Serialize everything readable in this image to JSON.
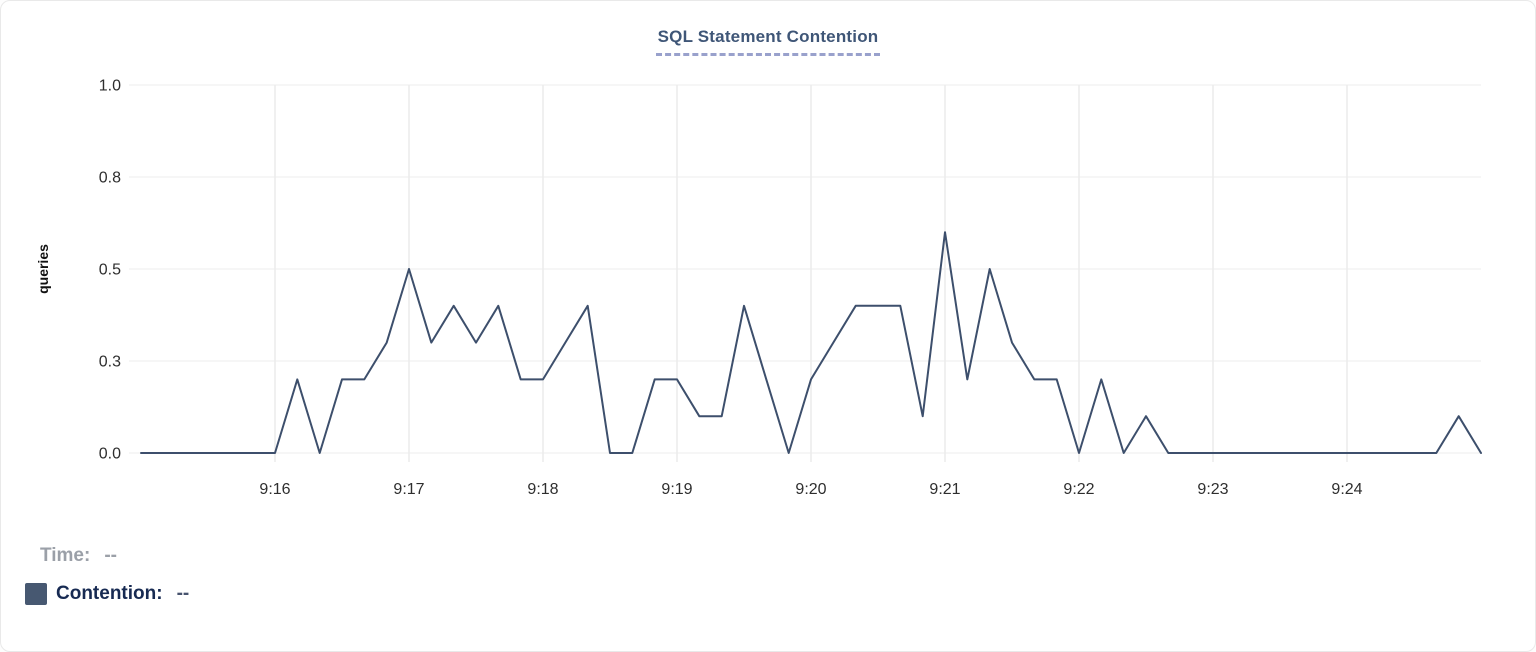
{
  "title": {
    "text": "SQL Statement Contention"
  },
  "colors": {
    "title": "#3f5677",
    "title_underline": "#99a1cc",
    "line": "#3d4f6c",
    "grid": "#ececec",
    "tick_text": "#2e2e2e",
    "legend_time_text": "#9ba0a8",
    "legend_series_text": "#172a52",
    "legend_series_value": "#47536e",
    "swatch": "#475871"
  },
  "tooltip": {
    "time_label": "Time:",
    "time_value": "--",
    "series_label": "Contention:",
    "series_value": "--"
  },
  "chart_data": {
    "type": "line",
    "title": "SQL Statement Contention",
    "xlabel": "",
    "ylabel": "queries",
    "ylim": [
      0,
      1
    ],
    "grid": true,
    "legend_position": "bottom-left",
    "y_ticks": [
      {
        "value": 1.0,
        "label": "1.0"
      },
      {
        "value": 0.75,
        "label": "0.8"
      },
      {
        "value": 0.5,
        "label": "0.5"
      },
      {
        "value": 0.25,
        "label": "0.3"
      },
      {
        "value": 0.0,
        "label": "0.0"
      }
    ],
    "x_domain": {
      "start": "9:15:00",
      "end": "9:25:00",
      "total_seconds": 600
    },
    "x_ticks": [
      {
        "offset_seconds": 60,
        "label": "9:16"
      },
      {
        "offset_seconds": 120,
        "label": "9:17"
      },
      {
        "offset_seconds": 180,
        "label": "9:18"
      },
      {
        "offset_seconds": 240,
        "label": "9:19"
      },
      {
        "offset_seconds": 300,
        "label": "9:20"
      },
      {
        "offset_seconds": 360,
        "label": "9:21"
      },
      {
        "offset_seconds": 420,
        "label": "9:22"
      },
      {
        "offset_seconds": 480,
        "label": "9:23"
      },
      {
        "offset_seconds": 540,
        "label": "9:24"
      }
    ],
    "series": [
      {
        "name": "Contention",
        "unit": "queries",
        "start": "9:15:00",
        "interval_seconds": 10,
        "values": [
          0,
          0,
          0,
          0,
          0,
          0,
          0,
          0.2,
          0,
          0.2,
          0.2,
          0.3,
          0.5,
          0.3,
          0.4,
          0.3,
          0.4,
          0.2,
          0.2,
          0.3,
          0.4,
          0,
          0,
          0.2,
          0.2,
          0.1,
          0.1,
          0.4,
          0.2,
          0,
          0.2,
          0.3,
          0.4,
          0.4,
          0.4,
          0.1,
          0.6,
          0.2,
          0.5,
          0.3,
          0.2,
          0.2,
          0,
          0.2,
          0,
          0.1,
          0,
          0,
          0,
          0,
          0,
          0,
          0,
          0,
          0,
          0,
          0,
          0,
          0,
          0.1,
          0
        ]
      }
    ]
  }
}
